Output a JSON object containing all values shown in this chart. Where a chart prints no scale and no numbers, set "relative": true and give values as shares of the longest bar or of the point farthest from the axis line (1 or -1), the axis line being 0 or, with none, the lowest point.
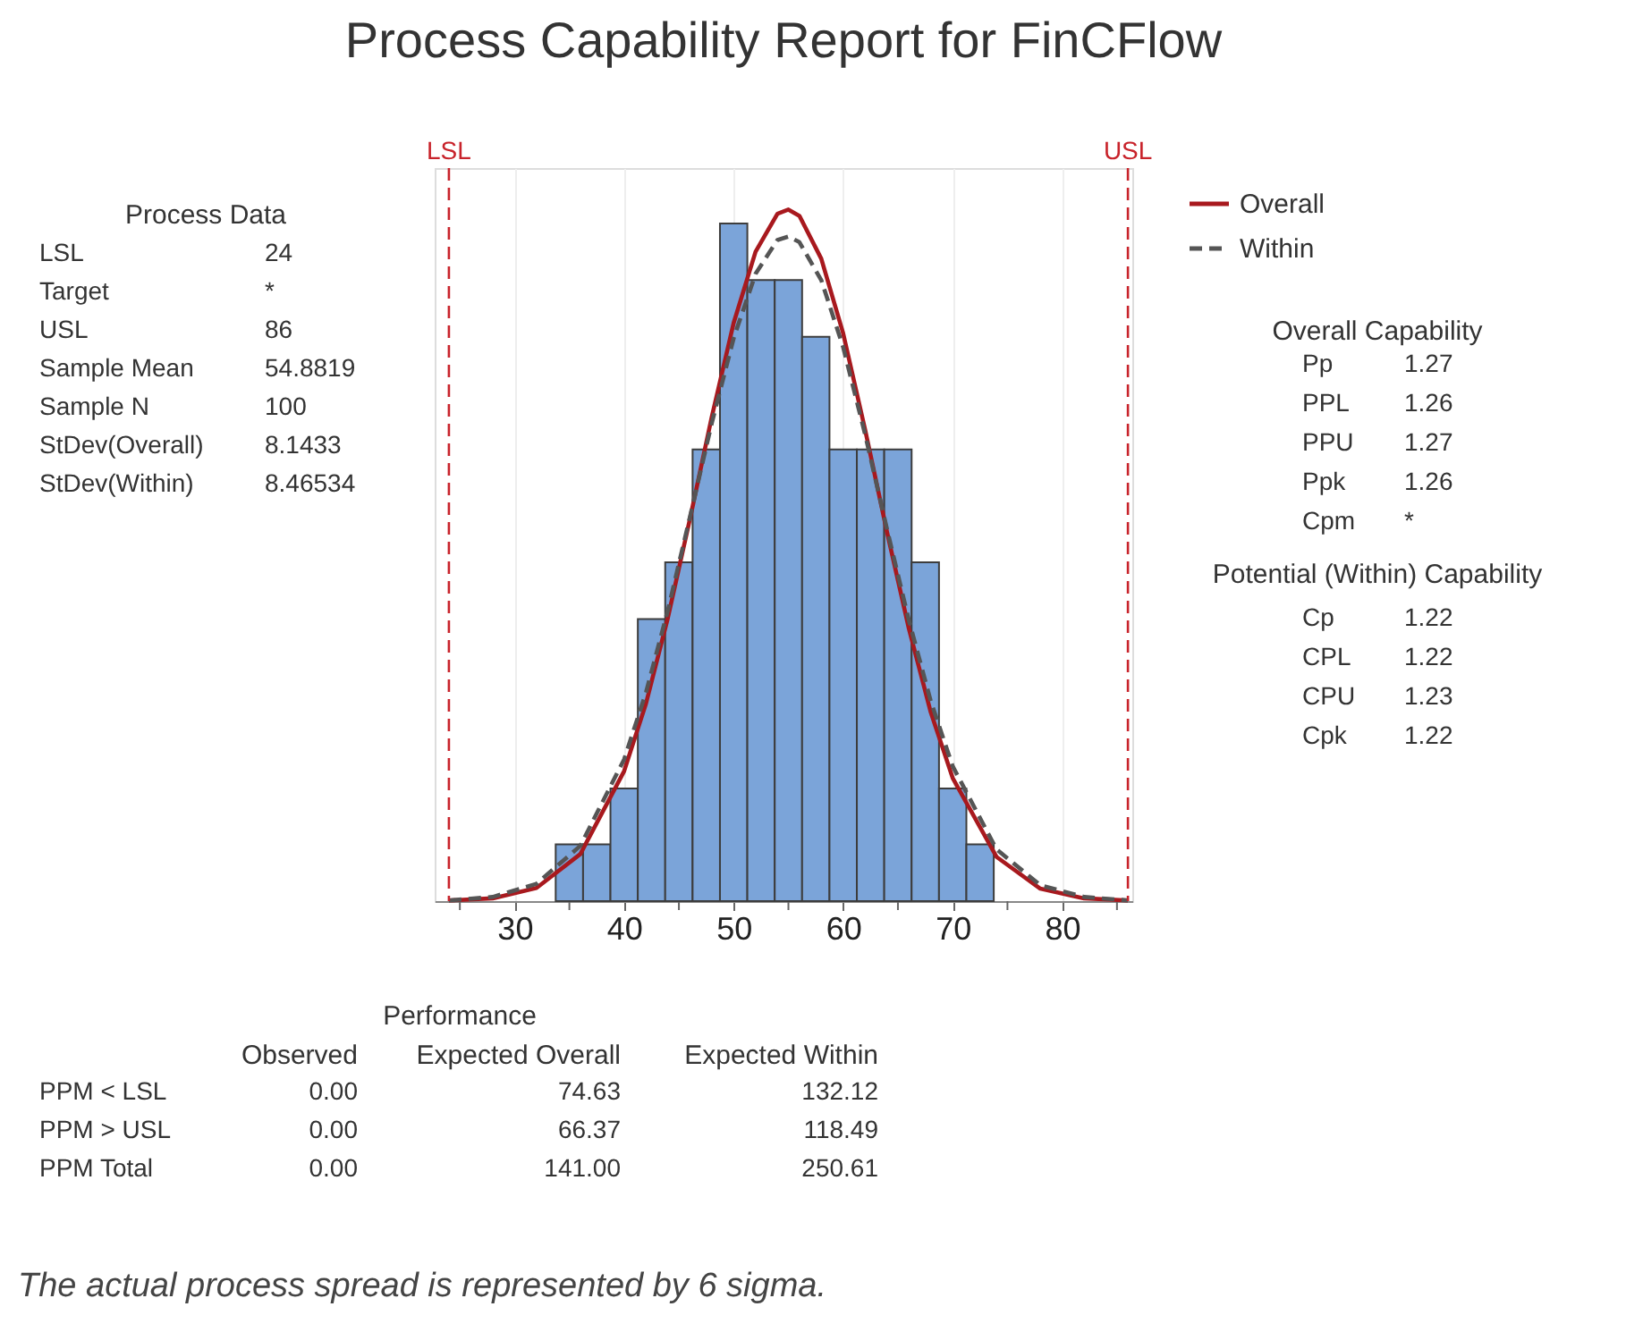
{
  "chart_data": {
    "type": "histogram",
    "title": "Process Capability Report for FinCFlow",
    "relative": true,
    "bins": [
      33.75,
      36.25,
      38.75,
      41.25,
      43.75,
      46.25,
      48.75,
      51.25,
      53.75,
      56.25,
      58.75,
      61.25,
      63.75,
      66.25,
      68.75,
      71.25,
      73.75
    ],
    "values": [
      0.082,
      0.082,
      0.163,
      0.408,
      0.49,
      0.653,
      0.98,
      0.898,
      0.898,
      0.816,
      0.653,
      0.653,
      0.653,
      0.49,
      0.163,
      0.082
    ],
    "color": "#7ba4d9",
    "series": [
      {
        "name": "Overall",
        "type": "line",
        "color": "#a8191e",
        "line_style": "solid",
        "x": [
          24,
          28,
          32,
          36,
          40,
          42,
          44,
          46,
          48,
          50,
          52,
          54,
          55,
          56,
          58,
          60,
          62,
          64,
          66,
          68,
          70,
          74,
          78,
          82,
          86
        ],
        "values": [
          0.001,
          0.004,
          0.019,
          0.068,
          0.188,
          0.286,
          0.41,
          0.552,
          0.7,
          0.836,
          0.939,
          0.994,
          1.0,
          0.991,
          0.929,
          0.821,
          0.682,
          0.534,
          0.394,
          0.273,
          0.178,
          0.064,
          0.018,
          0.004,
          0.001
        ]
      },
      {
        "name": "Within",
        "type": "line",
        "color": "#555555",
        "line_style": "dashed",
        "x": [
          24,
          28,
          32,
          36,
          40,
          42,
          44,
          46,
          48,
          50,
          52,
          54,
          55,
          56,
          58,
          60,
          62,
          64,
          66,
          68,
          70,
          74,
          78,
          82,
          86
        ],
        "values": [
          0.001,
          0.006,
          0.025,
          0.08,
          0.205,
          0.302,
          0.421,
          0.555,
          0.691,
          0.814,
          0.907,
          0.956,
          0.961,
          0.953,
          0.898,
          0.801,
          0.675,
          0.538,
          0.406,
          0.289,
          0.195,
          0.075,
          0.023,
          0.006,
          0.001
        ]
      }
    ],
    "xlim": [
      22.7,
      86.4
    ],
    "xticks": [
      {
        "value": 25,
        "label": null
      },
      30,
      {
        "value": 35,
        "label": null
      },
      40,
      {
        "value": 45,
        "label": null
      },
      50,
      {
        "value": 55,
        "label": null
      },
      60,
      {
        "value": 65,
        "label": null
      },
      70,
      {
        "value": 75,
        "label": null
      },
      80,
      {
        "value": 85,
        "label": null
      }
    ],
    "ref_lines": [
      {
        "axis": "x",
        "value": 24,
        "label": "LSL",
        "color": "#c8232b",
        "line_style": "dashed"
      },
      {
        "axis": "x",
        "value": 86,
        "label": "USL",
        "color": "#c8232b",
        "line_style": "dashed"
      }
    ],
    "grid": "x",
    "legend": "top right",
    "annotations": [
      "Process Data",
      "LSL",
      "24",
      "Target",
      "*",
      "USL",
      "86",
      "Sample Mean",
      "54.8819",
      "Sample N",
      "100",
      "StDev(Overall)",
      "8.1433",
      "StDev(Within)",
      "8.46534",
      "Overall Capability",
      "Pp",
      "1.27",
      "PPL",
      "1.26",
      "PPU",
      "1.27",
      "Ppk",
      "1.26",
      "Cpm",
      "*",
      "Potential (Within) Capability",
      "Cp",
      "1.22",
      "CPL",
      "1.22",
      "CPU",
      "1.23",
      "Cpk",
      "1.22",
      "Performance",
      "Observed",
      "Expected Overall",
      "Expected Within",
      "PPM < LSL",
      "0.00",
      "74.63",
      "132.12",
      "PPM > USL",
      "0.00",
      "66.37",
      "118.49",
      "PPM Total",
      "0.00",
      "141.00",
      "250.61",
      "The actual process spread is represented by 6 sigma."
    ]
  }
}
